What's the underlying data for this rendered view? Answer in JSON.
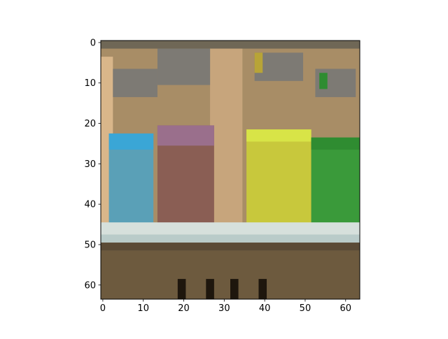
{
  "chart_data": {
    "type": "heatmap",
    "title": "",
    "xlabel": "",
    "ylabel": "",
    "xlim": [
      -0.5,
      63.5
    ],
    "ylim": [
      63.5,
      -0.5
    ],
    "image_size": [
      64,
      64
    ],
    "x_ticks": [
      0,
      10,
      20,
      30,
      40,
      50,
      60
    ],
    "y_ticks": [
      0,
      10,
      20,
      30,
      40,
      50,
      60
    ],
    "grid": false,
    "palette": {
      "background": "#a88d66",
      "top_band": "#6f6756",
      "left_wall": "#d9b68a",
      "shelf": "#b9cbc9",
      "shelf_shadow": "#5a4a36",
      "cabinet": "#6d5a3e",
      "knobs": "#1e160d",
      "label_gray": "#7d7a74",
      "bottle_blue": "#5aa0b7",
      "bottle_blue_cap": "#3aa6d6",
      "bottle_brown": "#8a5e54",
      "bottle_brown_cap": "#9a6f8c",
      "bottle_yellow": "#c8c83c",
      "bottle_yellow_cap": "#d8e447",
      "bottle_green": "#3a9a3a",
      "bottle_green_cap": "#2f8c31"
    }
  }
}
